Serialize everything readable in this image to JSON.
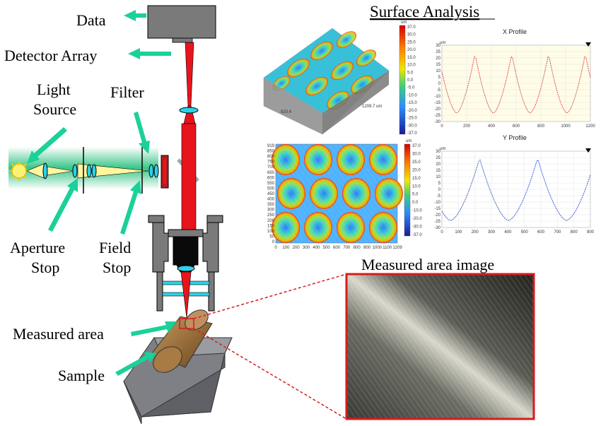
{
  "labels": {
    "data": "Data",
    "detector_array": "Detector Array",
    "light_source_1": "Light",
    "light_source_2": "Source",
    "filter": "Filter",
    "aperture_stop_1": "Aperture",
    "aperture_stop_2": "Stop",
    "field_stop_1": "Field",
    "field_stop_2": "Stop",
    "measured_area": "Measured area",
    "sample": "Sample"
  },
  "surface_analysis": {
    "title": "Surface Analysis",
    "plot3d": {
      "x_extent": "1209.7 um",
      "y_extent": "920.4",
      "unit": "um",
      "colorbar_ticks": [
        "37.0",
        "30.0",
        "25.0",
        "20.0",
        "15.0",
        "10.0",
        "5.0",
        "0.0",
        "-5.0",
        "-10.0",
        "-15.0",
        "-20.0",
        "-25.0",
        "-30.0",
        "-37.0"
      ]
    },
    "map2d": {
      "unit": "um",
      "y_ticks": [
        "919",
        "850",
        "800",
        "750",
        "700",
        "650",
        "600",
        "550",
        "500",
        "450",
        "400",
        "350",
        "300",
        "250",
        "200",
        "150",
        "100",
        "50",
        "0"
      ],
      "x_ticks": [
        "0",
        "100",
        "200",
        "300",
        "400",
        "500",
        "600",
        "700",
        "800",
        "900",
        "1000",
        "1100",
        "1209"
      ],
      "colorbar_ticks": [
        "37.0",
        "30.0",
        "25.0",
        "20.0",
        "15.0",
        "10.0",
        "5.0",
        "0.0",
        "-10.0",
        "-20.0",
        "-30.0",
        "-37.0"
      ]
    },
    "x_profile": {
      "title": "X Profile",
      "unit": "um",
      "y_ticks": [
        "30",
        "25",
        "20",
        "15",
        "10",
        "5",
        "0",
        "-5",
        "-10",
        "-15",
        "-20",
        "-25",
        "-30"
      ],
      "x_ticks": [
        "0",
        "200",
        "400",
        "600",
        "800",
        "1000",
        "1200"
      ]
    },
    "y_profile": {
      "title": "Y Profile",
      "unit": "um",
      "y_ticks": [
        "30",
        "25",
        "20",
        "15",
        "10",
        "5",
        "0",
        "-5",
        "-10",
        "-15",
        "-20",
        "-25",
        "-30"
      ],
      "x_ticks": [
        "0",
        "100",
        "200",
        "300",
        "400",
        "500",
        "600",
        "700",
        "800",
        "900"
      ]
    }
  },
  "measured_image": {
    "title": "Measured area image"
  },
  "colors": {
    "arrow": "#1ad19a",
    "beam": "#e8141c",
    "lens": "#29d4ea",
    "detector": "#7a7a7a",
    "sample": "#8a6a3a"
  }
}
